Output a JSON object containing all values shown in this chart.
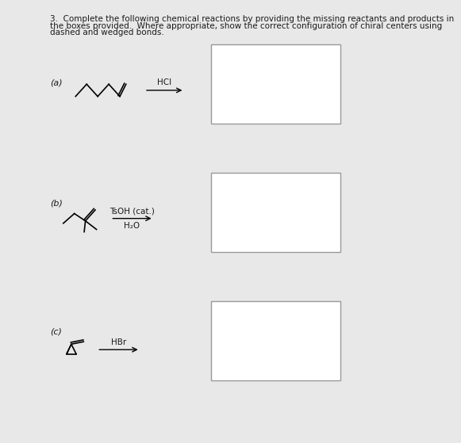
{
  "title_line1": "3.  Complete the following chemical reactions by providing the missing reactants and products in",
  "title_line2": "the boxes provided.  Where appropriate, show the correct configuration of chiral centers using",
  "title_line3": "dashed and wedged bonds.",
  "title_fontsize": 7.5,
  "bg_color": "#e8e8e8",
  "white_color": "#ffffff",
  "box_edge_color": "#999999",
  "text_color": "#1a1a1a",
  "sections": [
    "(a)",
    "(b)",
    "(c)"
  ],
  "reagents_a": "HCl",
  "reagents_b_line1": "TsOH (cat.)",
  "reagents_b_line2": "H₂O",
  "reagents_c": "HBr"
}
